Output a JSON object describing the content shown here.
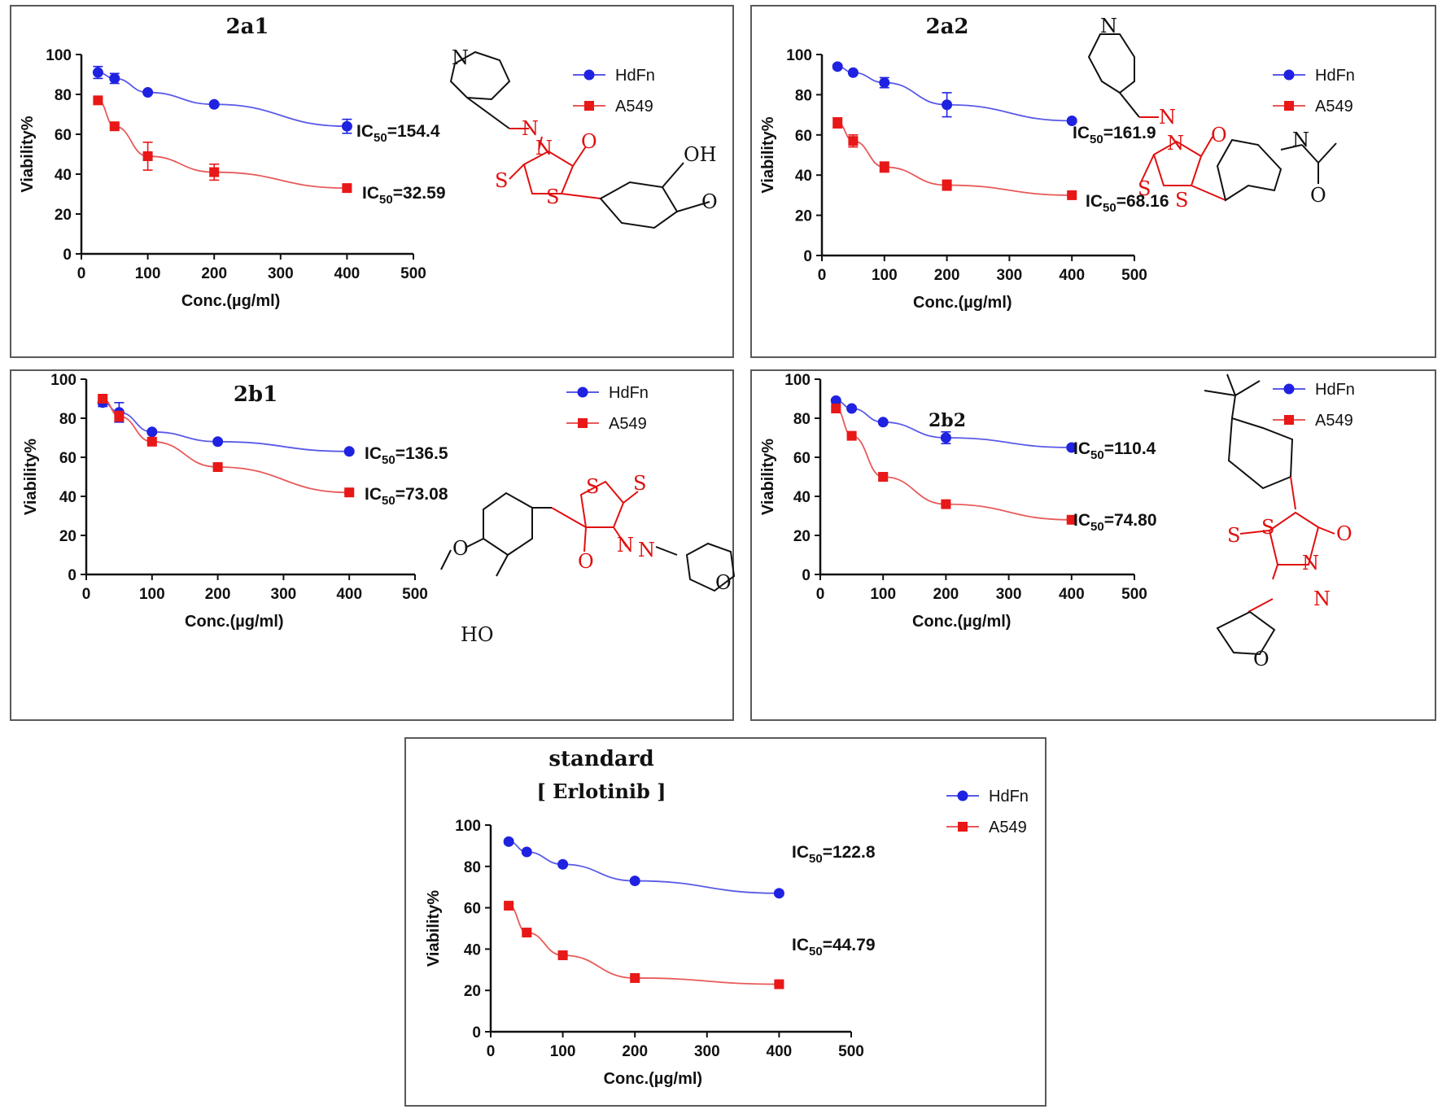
{
  "colors": {
    "hdfn": "#1f22e0",
    "a549": "#e81818",
    "hdfn_line": "#5a5ae8",
    "a549_line": "#e85a5a",
    "structure_black": "#111111",
    "structure_red": "#e01010"
  },
  "chart_data": [
    {
      "type": "scatter",
      "title": "2a1",
      "subtitle": "",
      "xlabel": "Conc.(µg/ml)",
      "ylabel": "Viability%",
      "xlim": [
        0,
        500
      ],
      "ylim": [
        0,
        100
      ],
      "xticks": [
        "0",
        "100",
        "200",
        "300",
        "400",
        "500"
      ],
      "yticks": [
        "0",
        "20",
        "40",
        "60",
        "80",
        "100"
      ],
      "legend_position": "top-right",
      "grid": false,
      "series": [
        {
          "name": "HdFn",
          "marker": "circle",
          "x": [
            25,
            50,
            100,
            200,
            400
          ],
          "y": [
            91,
            88,
            81,
            75,
            64
          ],
          "err": [
            3,
            2.5,
            0.8,
            0.8,
            3.5
          ]
        },
        {
          "name": "A549",
          "marker": "square",
          "x": [
            25,
            50,
            100,
            200,
            400
          ],
          "y": [
            77,
            64,
            49,
            41,
            33
          ],
          "err": [
            1,
            1,
            7,
            4,
            1
          ]
        }
      ],
      "annotations": [
        {
          "base": "IC",
          "sub": "50",
          "value": "=154.4"
        },
        {
          "base": "IC",
          "sub": "50",
          "value": "=32.59"
        }
      ],
      "structure_labels": [
        "N",
        "N",
        "N",
        "O",
        "S",
        "S",
        "OH",
        "O"
      ]
    },
    {
      "type": "scatter",
      "title": "2a2",
      "subtitle": "",
      "xlabel": "Conc.(µg/ml)",
      "ylabel": "Viability%",
      "xlim": [
        0,
        500
      ],
      "ylim": [
        0,
        100
      ],
      "xticks": [
        "0",
        "100",
        "200",
        "300",
        "400",
        "500"
      ],
      "yticks": [
        "0",
        "20",
        "40",
        "60",
        "80",
        "100"
      ],
      "legend_position": "top-right",
      "grid": false,
      "series": [
        {
          "name": "HdFn",
          "marker": "circle",
          "x": [
            25,
            50,
            100,
            200,
            400
          ],
          "y": [
            94,
            91,
            86,
            75,
            67
          ],
          "err": [
            0.8,
            0.8,
            2.5,
            6,
            0.8
          ]
        },
        {
          "name": "A549",
          "marker": "square",
          "x": [
            25,
            50,
            100,
            200,
            400
          ],
          "y": [
            66,
            57,
            44,
            35,
            30
          ],
          "err": [
            2.5,
            3,
            2.5,
            2.5,
            0.8
          ]
        }
      ],
      "annotations": [
        {
          "base": "IC",
          "sub": "50",
          "value": "=161.9"
        },
        {
          "base": "IC",
          "sub": "50",
          "value": "=68.16"
        }
      ],
      "structure_labels": [
        "N",
        "N",
        "N",
        "O",
        "S",
        "S",
        "N",
        "O"
      ]
    },
    {
      "type": "scatter",
      "title": "2b1",
      "subtitle": "",
      "xlabel": "Conc.(µg/ml)",
      "ylabel": "Viability%",
      "xlim": [
        0,
        500
      ],
      "ylim": [
        0,
        100
      ],
      "xticks": [
        "0",
        "100",
        "200",
        "300",
        "400",
        "500"
      ],
      "yticks": [
        "0",
        "20",
        "40",
        "60",
        "80",
        "100"
      ],
      "legend_position": "top-right",
      "grid": false,
      "series": [
        {
          "name": "HdFn",
          "marker": "circle",
          "x": [
            25,
            50,
            100,
            200,
            400
          ],
          "y": [
            88,
            83,
            73,
            68,
            63
          ],
          "err": [
            2,
            5,
            0.8,
            0.8,
            0.8
          ]
        },
        {
          "name": "A549",
          "marker": "square",
          "x": [
            25,
            50,
            100,
            200,
            400
          ],
          "y": [
            90,
            81,
            68,
            55,
            42
          ],
          "err": [
            1.5,
            2.5,
            0.8,
            0.8,
            0.8
          ]
        }
      ],
      "annotations": [
        {
          "base": "IC",
          "sub": "50",
          "value": "=136.5"
        },
        {
          "base": "IC",
          "sub": "50",
          "value": "=73.08"
        }
      ],
      "structure_labels": [
        "S",
        "S",
        "N",
        "N",
        "O",
        "O",
        "O",
        "HO"
      ]
    },
    {
      "type": "scatter",
      "title": "2b2",
      "subtitle": "",
      "xlabel": "Conc.(µg/ml)",
      "ylabel": "Viability%",
      "xlim": [
        0,
        500
      ],
      "ylim": [
        0,
        100
      ],
      "xticks": [
        "0",
        "100",
        "200",
        "300",
        "400",
        "500"
      ],
      "yticks": [
        "0",
        "20",
        "40",
        "60",
        "80",
        "100"
      ],
      "legend_position": "top-right",
      "grid": false,
      "series": [
        {
          "name": "HdFn",
          "marker": "circle",
          "x": [
            25,
            50,
            100,
            200,
            400
          ],
          "y": [
            89,
            85,
            78,
            70,
            65
          ],
          "err": [
            0.8,
            0.8,
            0.8,
            3,
            0.8
          ]
        },
        {
          "name": "A549",
          "marker": "square",
          "x": [
            25,
            50,
            100,
            200,
            400
          ],
          "y": [
            85,
            71,
            50,
            36,
            28
          ],
          "err": [
            0.8,
            0.8,
            1.5,
            0.8,
            0.8
          ]
        }
      ],
      "annotations": [
        {
          "base": "IC",
          "sub": "50",
          "value": "=110.4"
        },
        {
          "base": "IC",
          "sub": "50",
          "value": "=74.80"
        }
      ],
      "structure_labels": [
        "S",
        "S",
        "N",
        "O",
        "N",
        "O"
      ]
    },
    {
      "type": "scatter",
      "title": "standard",
      "subtitle": "[ Erlotinib ]",
      "xlabel": "Conc.(µg/ml)",
      "ylabel": "Viability%",
      "xlim": [
        0,
        500
      ],
      "ylim": [
        0,
        100
      ],
      "xticks": [
        "0",
        "100",
        "200",
        "300",
        "400",
        "500"
      ],
      "yticks": [
        "0",
        "20",
        "40",
        "60",
        "80",
        "100"
      ],
      "legend_position": "top-right",
      "grid": false,
      "series": [
        {
          "name": "HdFn",
          "marker": "circle",
          "x": [
            25,
            50,
            100,
            200,
            400
          ],
          "y": [
            92,
            87,
            81,
            73,
            67
          ],
          "err": [
            0.8,
            0.8,
            0.8,
            0.8,
            0.8
          ]
        },
        {
          "name": "A549",
          "marker": "square",
          "x": [
            25,
            50,
            100,
            200,
            400
          ],
          "y": [
            61,
            48,
            37,
            26,
            23
          ],
          "err": [
            0.8,
            0.8,
            0.8,
            0.8,
            0.8
          ]
        }
      ],
      "annotations": [
        {
          "base": "IC",
          "sub": "50",
          "value": "=122.8"
        },
        {
          "base": "IC",
          "sub": "50",
          "value": "=44.79"
        }
      ],
      "structure_labels": []
    }
  ]
}
